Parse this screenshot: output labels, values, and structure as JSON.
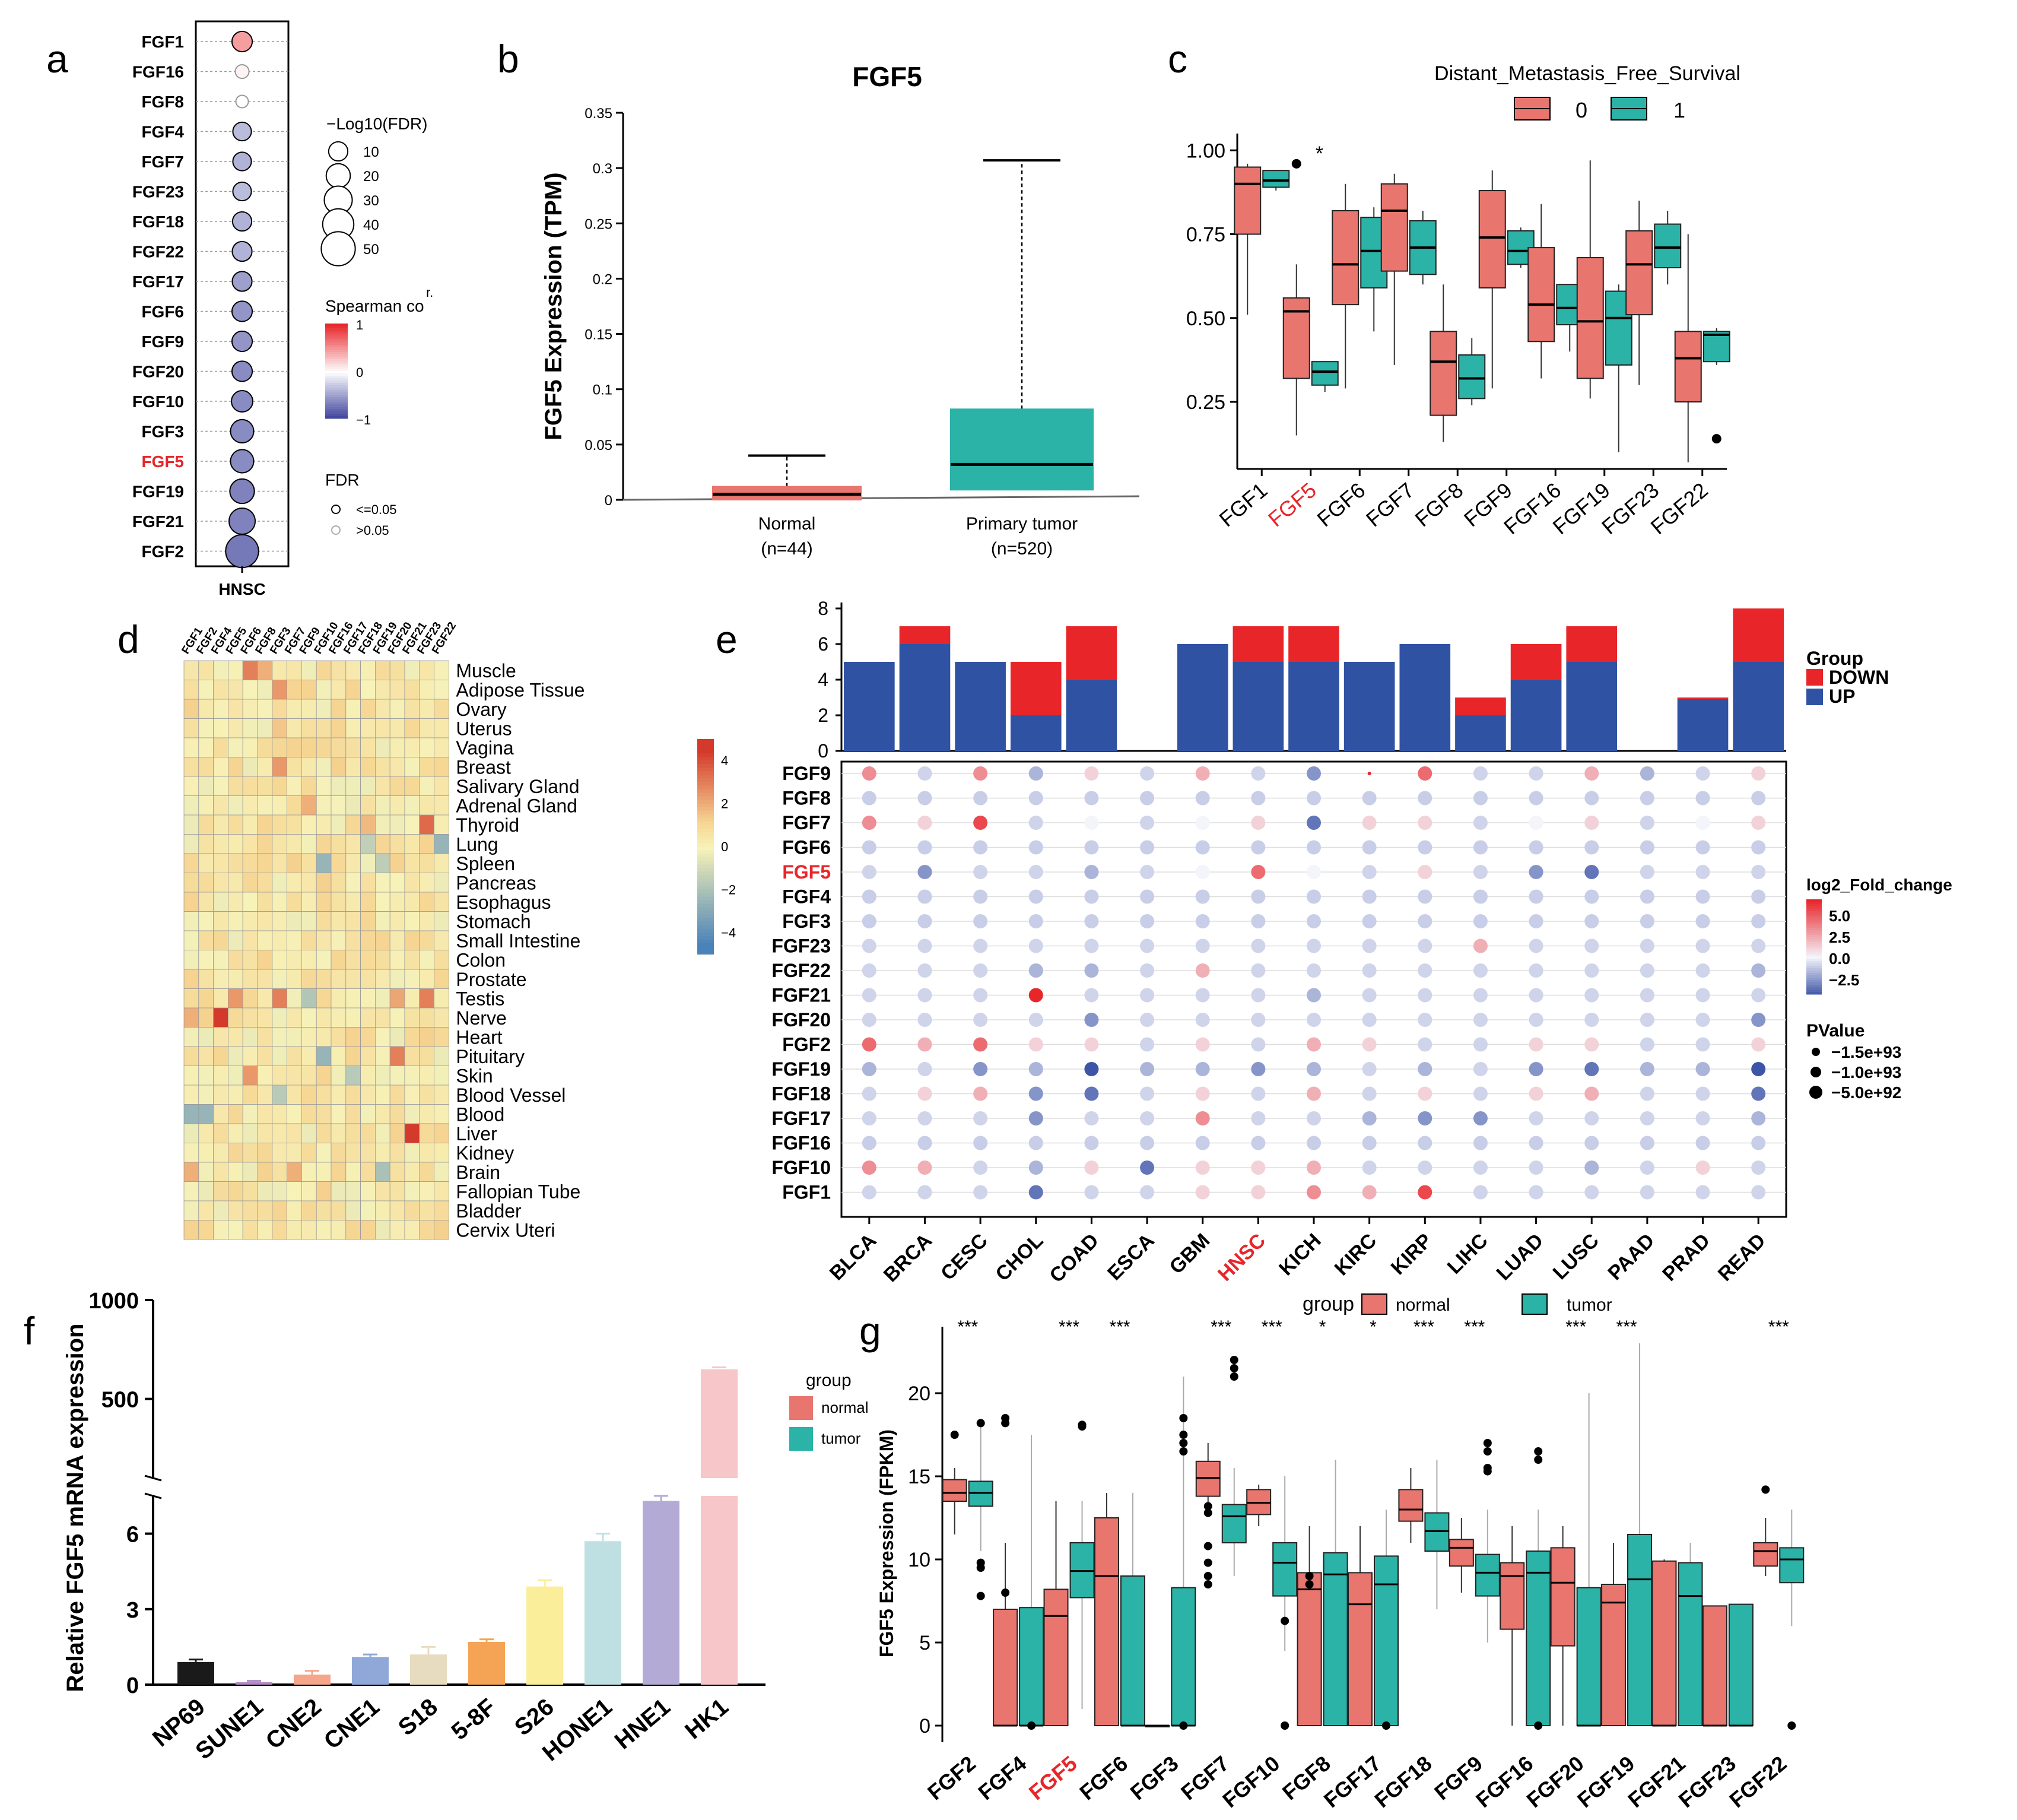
{
  "chart_data": [
    {
      "panel": "a",
      "type": "scatter",
      "title": "",
      "xlabel": "HNSC",
      "genes": [
        "FGF1",
        "FGF16",
        "FGF8",
        "FGF4",
        "FGF7",
        "FGF23",
        "FGF18",
        "FGF22",
        "FGF17",
        "FGF6",
        "FGF9",
        "FGF20",
        "FGF10",
        "FGF3",
        "FGF5",
        "FGF19",
        "FGF21",
        "FGF2"
      ],
      "highlight": "FGF5",
      "spearman": [
        0.45,
        0.05,
        0.0,
        -0.35,
        -0.4,
        -0.35,
        -0.4,
        -0.4,
        -0.5,
        -0.55,
        -0.55,
        -0.6,
        -0.6,
        -0.6,
        -0.6,
        -0.65,
        -0.65,
        -0.7
      ],
      "neglog10fdr": [
        12,
        3,
        2,
        9,
        9,
        9,
        10,
        11,
        11,
        12,
        12,
        12,
        14,
        18,
        18,
        21,
        25,
        46
      ],
      "sig": [
        true,
        false,
        false,
        true,
        true,
        true,
        true,
        true,
        true,
        true,
        true,
        true,
        true,
        true,
        true,
        true,
        true,
        true
      ],
      "size_legend_title": "−Log10(FDR)",
      "size_legend": [
        "10",
        "20",
        "30",
        "40",
        "50"
      ],
      "color_legend_title": "Spearman co",
      "color_legend_title2": "r.",
      "color_legend_ticks": [
        "1",
        "0",
        "−1"
      ],
      "fdr_legend_title": "FDR",
      "fdr_legend": [
        "<=0.05",
        ">0.05"
      ]
    },
    {
      "panel": "b",
      "type": "box",
      "title": "FGF5",
      "ylabel": "FGF5 Expression (TPM)",
      "ylim": [
        0,
        0.35
      ],
      "yticks": [
        "0",
        "0.05",
        "0.1",
        "0.15",
        "0.2",
        "0.25",
        "0.3",
        "0.35"
      ],
      "groups": [
        {
          "label": "Normal",
          "n": "(n=44)",
          "min": 0,
          "q1": 0.0,
          "median": 0.005,
          "q3": 0.012,
          "max": 0.04,
          "color": "#e8756e"
        },
        {
          "label": "Primary tumor",
          "n": "(n=520)",
          "min": 0,
          "q1": 0.009,
          "median": 0.032,
          "q3": 0.082,
          "max": 0.307,
          "color": "#2bb3a8"
        }
      ]
    },
    {
      "panel": "c",
      "type": "box",
      "title": "Distant_Metastasis_Free_Survival",
      "legend": [
        "0",
        "1"
      ],
      "ylim": [
        0.05,
        1.05
      ],
      "yticks": [
        "0.25",
        "0.50",
        "0.75",
        "1.00"
      ],
      "categories": [
        "FGF1",
        "FGF5",
        "FGF6",
        "FGF7",
        "FGF8",
        "FGF9",
        "FGF16",
        "FGF19",
        "FGF23",
        "FGF22"
      ],
      "highlight": "FGF5",
      "sig_label": "*",
      "series": [
        {
          "name": "0",
          "color": "#e8756e",
          "boxes": [
            [
              0.51,
              0.75,
              0.9,
              0.95,
              0.96
            ],
            [
              0.15,
              0.32,
              0.52,
              0.56,
              0.66
            ],
            [
              0.29,
              0.54,
              0.66,
              0.82,
              0.9
            ],
            [
              0.36,
              0.64,
              0.82,
              0.9,
              0.93
            ],
            [
              0.13,
              0.21,
              0.37,
              0.46,
              0.6
            ],
            [
              0.29,
              0.59,
              0.74,
              0.88,
              0.94
            ],
            [
              0.32,
              0.43,
              0.54,
              0.71,
              0.84
            ],
            [
              0.26,
              0.32,
              0.49,
              0.68,
              0.97
            ],
            [
              0.3,
              0.51,
              0.66,
              0.76,
              0.85
            ],
            [
              0.07,
              0.25,
              0.38,
              0.46,
              0.75
            ]
          ]
        },
        {
          "name": "1",
          "color": "#2bb3a8",
          "boxes": [
            [
              0.88,
              0.89,
              0.91,
              0.94,
              0.94
            ],
            [
              0.28,
              0.3,
              0.34,
              0.37,
              0.37
            ],
            [
              0.46,
              0.59,
              0.7,
              0.8,
              0.83
            ],
            [
              0.6,
              0.63,
              0.71,
              0.79,
              0.82
            ],
            [
              0.24,
              0.26,
              0.32,
              0.39,
              0.44
            ],
            [
              0.65,
              0.66,
              0.7,
              0.76,
              0.77
            ],
            [
              0.4,
              0.48,
              0.53,
              0.6,
              0.6
            ],
            [
              0.1,
              0.36,
              0.5,
              0.58,
              0.6
            ],
            [
              0.6,
              0.65,
              0.71,
              0.78,
              0.82
            ],
            [
              0.36,
              0.37,
              0.45,
              0.46,
              0.47
            ]
          ]
        }
      ]
    },
    {
      "panel": "d",
      "type": "heatmap",
      "columns": [
        "FGF1",
        "FGF2",
        "FGF4",
        "FGF5",
        "FGF6",
        "FGF8",
        "FGF3",
        "FGF7",
        "FGF9",
        "FGF10",
        "FGF16",
        "FGF17",
        "FGF18",
        "FGF19",
        "FGF20",
        "FGF21",
        "FGF23",
        "FGF22"
      ],
      "rows": [
        "Muscle",
        "Adipose Tissue",
        "Ovary",
        "Uterus",
        "Vagina",
        "Breast",
        "Salivary Gland",
        "Adrenal Gland",
        "Thyroid",
        "Lung",
        "Spleen",
        "Pancreas",
        "Esophagus",
        "Stomach",
        "Small Intestine",
        "Colon",
        "Prostate",
        "Testis",
        "Nerve",
        "Heart",
        "Pituitary",
        "Skin",
        "Blood Vessel",
        "Blood",
        "Liver",
        "Kidney",
        "Brain",
        "Fallopian Tube",
        "Bladder",
        "Cervix Uteri"
      ],
      "colorbar_ticks": [
        "4",
        "2",
        "0",
        "−2",
        "−4"
      ],
      "zlim": [
        -5,
        5
      ]
    },
    {
      "panel": "e",
      "type": "bar+dot",
      "cancers": [
        "BLCA",
        "BRCA",
        "CESC",
        "CHOL",
        "COAD",
        "ESCA",
        "GBM",
        "HNSC",
        "KICH",
        "KIRC",
        "KIRP",
        "LIHC",
        "LUAD",
        "LUSC",
        "PAAD",
        "PRAD",
        "READ"
      ],
      "highlight": "HNSC",
      "up": [
        5,
        6,
        5,
        2,
        4,
        0,
        6,
        5,
        5,
        5,
        6,
        2,
        4,
        5,
        0,
        2.9,
        5
      ],
      "down": [
        0,
        1,
        0,
        3,
        3,
        0,
        0,
        2,
        2,
        0,
        0,
        1,
        2,
        2,
        0,
        0.1,
        3
      ],
      "ylim": [
        0,
        8
      ],
      "yticks": [
        "0",
        "2",
        "4",
        "6",
        "8"
      ],
      "genes": [
        "FGF9",
        "FGF8",
        "FGF7",
        "FGF6",
        "FGF5",
        "FGF4",
        "FGF3",
        "FGF23",
        "FGF22",
        "FGF21",
        "FGF20",
        "FGF2",
        "FGF19",
        "FGF18",
        "FGF17",
        "FGF16",
        "FGF10",
        "FGF1"
      ],
      "highlight_gene": "FGF5",
      "legend_group_title": "Group",
      "legend_group": [
        "DOWN",
        "UP"
      ],
      "colorbar_title": "log2_Fold_change",
      "colorbar_ticks": [
        "5.0",
        "2.5",
        "0.0",
        "−2.5"
      ],
      "pvalue_title": "PValue",
      "pvalue_legend": [
        "−1.5e+93",
        "−1.0e+93",
        "−5.0e+92"
      ]
    },
    {
      "panel": "f",
      "type": "bar",
      "ylabel": "Relative FGF5 mRNA expression",
      "categories": [
        "NP69",
        "SUNE1",
        "CNE2",
        "CNE1",
        "S18",
        "5-8F",
        "S26",
        "HONE1",
        "HNE1",
        "HK1"
      ],
      "values": [
        0.9,
        0.1,
        0.4,
        1.1,
        1.2,
        1.7,
        3.9,
        5.7,
        7.3,
        650
      ],
      "errors": [
        0.1,
        0.05,
        0.15,
        0.1,
        0.3,
        0.1,
        0.25,
        0.3,
        0.2,
        10
      ],
      "colors": [
        "#1a1a1a",
        "#b089c4",
        "#f4a58a",
        "#8fa8d8",
        "#e8dcc0",
        "#f5a455",
        "#fbee9a",
        "#bfe0e2",
        "#b3aad6",
        "#f6c6c8"
      ],
      "yticks_low": [
        "0",
        "3",
        "6"
      ],
      "yticks_high": [
        "500",
        "1000"
      ]
    },
    {
      "panel": "g",
      "type": "box",
      "ylabel": "FGF5 Expression (FPKM)",
      "legend_title": "group",
      "legend": [
        "normal",
        "tumor"
      ],
      "legend_top_title": "group",
      "ylim": [
        -1,
        24
      ],
      "yticks": [
        "0",
        "5",
        "10",
        "15",
        "20"
      ],
      "categories": [
        "FGF2",
        "FGF4",
        "FGF5",
        "FGF6",
        "FGF3",
        "FGF7",
        "FGF10",
        "FGF8",
        "FGF17",
        "FGF18",
        "FGF9",
        "FGF16",
        "FGF20",
        "FGF19",
        "FGF21",
        "FGF23",
        "FGF22"
      ],
      "highlight": "FGF5",
      "significance": [
        "***",
        "",
        "***",
        "***",
        "",
        "***",
        "***",
        "*",
        "*",
        "***",
        "***",
        "",
        "***",
        "***",
        "",
        "",
        "***"
      ],
      "series": [
        {
          "name": "normal",
          "color": "#e8756e",
          "boxes": [
            [
              11.5,
              13.5,
              14,
              14.8,
              15.5
            ],
            [
              0,
              0,
              0,
              7,
              11
            ],
            [
              0,
              0,
              6.6,
              8.2,
              13.5
            ],
            [
              0,
              0,
              9,
              12.5,
              14
            ],
            [
              0,
              0,
              0,
              0,
              0
            ],
            [
              13,
              13.8,
              14.9,
              15.9,
              17
            ],
            [
              12,
              12.7,
              13.4,
              14.2,
              14.5
            ],
            [
              0,
              0,
              8.2,
              9.2,
              12
            ],
            [
              0,
              0,
              7.3,
              9.2,
              12
            ],
            [
              11,
              12.3,
              13,
              14.2,
              15.5
            ],
            [
              8,
              9.6,
              10.7,
              11.2,
              12.5
            ],
            [
              0,
              5.8,
              9,
              9.8,
              12
            ],
            [
              0,
              4.8,
              8.6,
              10.7,
              12
            ],
            [
              0,
              0,
              7.4,
              8.5,
              11
            ],
            [
              0,
              0,
              0,
              9.9,
              10
            ],
            [
              0,
              0,
              0,
              7.2,
              7.2
            ],
            [
              9,
              9.6,
              10.5,
              11,
              12.5
            ]
          ]
        },
        {
          "name": "tumor",
          "color": "#2bb3a8",
          "boxes": [
            [
              10.5,
              13.2,
              14,
              14.7,
              18
            ],
            [
              0,
              0,
              0,
              7.1,
              17.5
            ],
            [
              1,
              7.7,
              9.3,
              11,
              13.5
            ],
            [
              0,
              0,
              0,
              9,
              14
            ],
            [
              0,
              0,
              0,
              8.3,
              21
            ],
            [
              9,
              11,
              12.6,
              13.3,
              15.5
            ],
            [
              4.5,
              7.8,
              9.8,
              11,
              15
            ],
            [
              0,
              0,
              9.1,
              10.4,
              16
            ],
            [
              0,
              0,
              8.5,
              10.2,
              13
            ],
            [
              7,
              10.5,
              11.7,
              12.8,
              16
            ],
            [
              5,
              7.8,
              9.2,
              10.3,
              13
            ],
            [
              0,
              0,
              9.2,
              10.5,
              13
            ],
            [
              0,
              0,
              0,
              8.3,
              20
            ],
            [
              0,
              0,
              8.8,
              11.5,
              23
            ],
            [
              0,
              0,
              7.8,
              9.8,
              11
            ],
            [
              0,
              0,
              0,
              7.3,
              7.3
            ],
            [
              6,
              8.6,
              10,
              10.7,
              13
            ]
          ]
        }
      ]
    }
  ],
  "panels": {
    "a": "a",
    "b": "b",
    "c": "c",
    "d": "d",
    "e": "e",
    "f": "f",
    "g": "g"
  },
  "colors": {
    "normal": "#e8756e",
    "tumor": "#2bb3a8",
    "up": "#2f52a3",
    "down": "#e8262a",
    "purple": "#8f86c6"
  }
}
